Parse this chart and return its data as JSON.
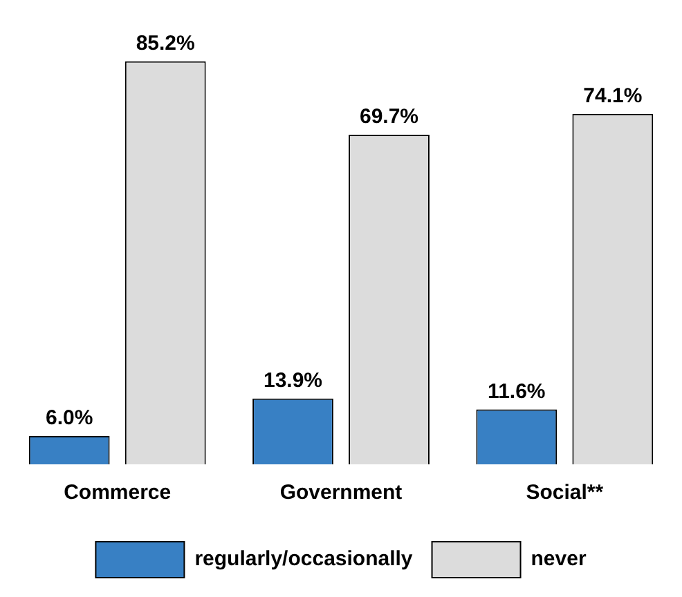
{
  "chart_data": {
    "type": "bar",
    "categories": [
      "Commerce",
      "Government",
      "Social**"
    ],
    "series": [
      {
        "name": "regularly/occasionally",
        "color": "#3880c4",
        "values": [
          6.0,
          13.9,
          11.6
        ],
        "value_labels": [
          "6.0%",
          "13.9%",
          "11.6%"
        ]
      },
      {
        "name": "never",
        "color": "#dcdcdc",
        "values": [
          85.2,
          69.7,
          74.1
        ],
        "value_labels": [
          "85.2%",
          "69.7%",
          "74.1%"
        ]
      }
    ],
    "grid": false,
    "legend": "bottom"
  }
}
